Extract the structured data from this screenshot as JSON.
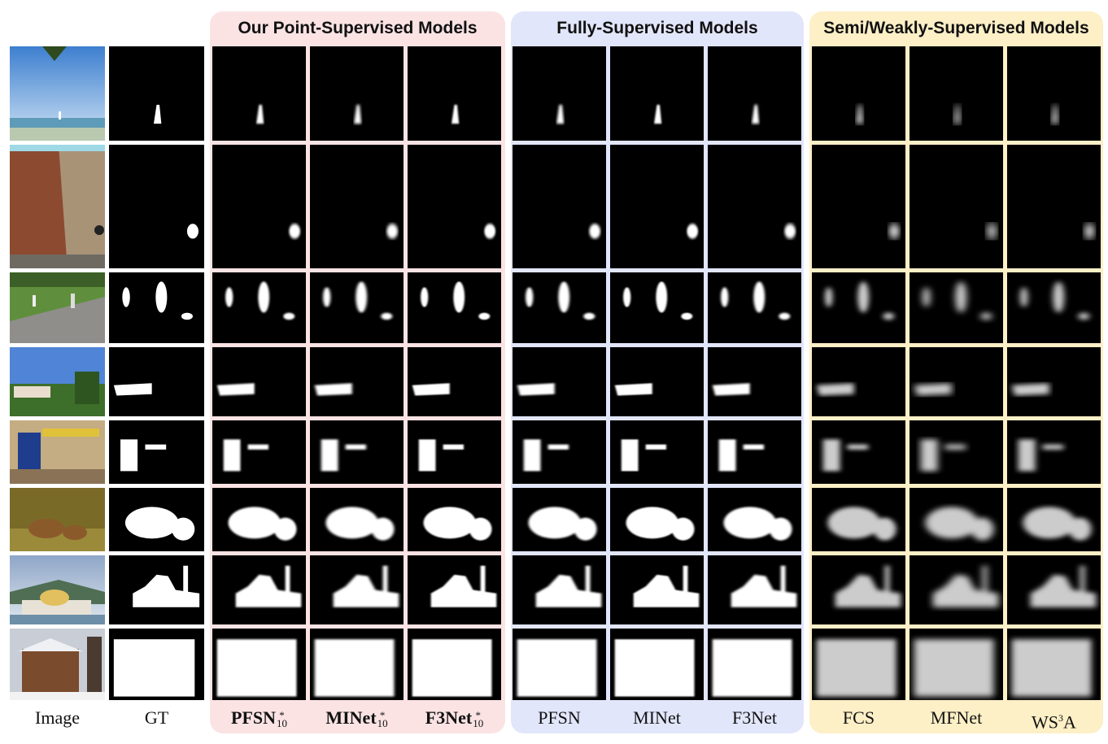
{
  "groups": {
    "point": "Our Point-Supervised Models",
    "full": "Fully-Supervised Models",
    "semi": "Semi/Weakly-Supervised Models"
  },
  "columns": {
    "image": "Image",
    "gt": "GT",
    "pfsn10": "PFSN",
    "minet10": "MINet",
    "f3net10": "F3Net",
    "pfsn": "PFSN",
    "minet": "MINet",
    "f3net": "F3Net",
    "fcs": "FCS",
    "mfnet": "MFNet",
    "ws3a": "WS",
    "ws3a_sup": "3",
    "ws3a_end": "A",
    "star": "*",
    "ten": "10"
  },
  "colors": {
    "point_bg": "#fbe3e4",
    "full_bg": "#e2e6fb",
    "semi_bg": "#fdefc6"
  }
}
